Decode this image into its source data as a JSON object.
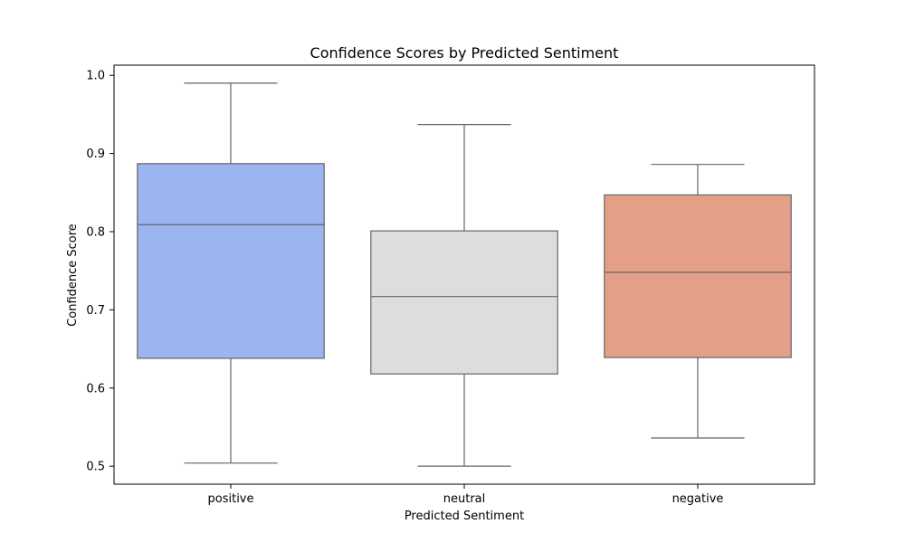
{
  "chart_data": {
    "type": "box",
    "title": "Confidence Scores by Predicted Sentiment",
    "xlabel": "Predicted Sentiment",
    "ylabel": "Confidence Score",
    "ylim": [
      0.477,
      1.013
    ],
    "yticks": [
      0.5,
      0.6,
      0.7,
      0.8,
      0.9,
      1.0
    ],
    "ytick_labels": [
      "0.5",
      "0.6",
      "0.7",
      "0.8",
      "0.9",
      "1.0"
    ],
    "categories": [
      "positive",
      "neutral",
      "negative"
    ],
    "grid": false,
    "legend": "none",
    "series": [
      {
        "category": "positive",
        "min": 0.504,
        "q1": 0.638,
        "median": 0.809,
        "q3": 0.887,
        "max": 0.99,
        "color": "#9ab5f0"
      },
      {
        "category": "neutral",
        "min": 0.5,
        "q1": 0.618,
        "median": 0.717,
        "q3": 0.801,
        "max": 0.937,
        "color": "#dddddd"
      },
      {
        "category": "negative",
        "min": 0.536,
        "q1": 0.639,
        "median": 0.748,
        "q3": 0.847,
        "max": 0.886,
        "color": "#e39f87"
      }
    ]
  }
}
